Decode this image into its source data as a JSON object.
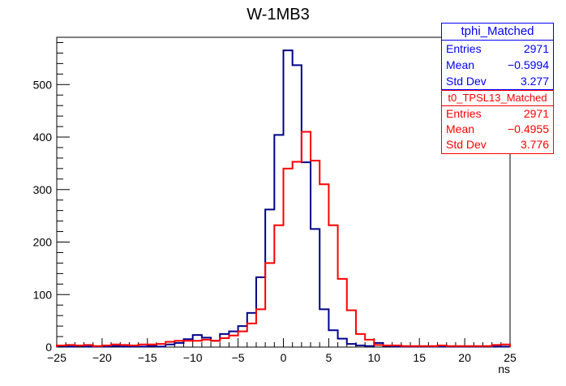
{
  "chart_data": {
    "type": "histogram",
    "title": "W-1MB3",
    "xlabel": "ns",
    "ylabel": "",
    "xlim": [
      -25,
      25
    ],
    "ylim": [
      0,
      590
    ],
    "bin_width": 1,
    "x_ticks": [
      "−25",
      "−20",
      "−15",
      "−10",
      "−5",
      "0",
      "5",
      "10",
      "15",
      "20",
      "25"
    ],
    "x_tick_values": [
      -25,
      -20,
      -15,
      -10,
      -5,
      0,
      5,
      10,
      15,
      20,
      25
    ],
    "y_ticks": [
      "0",
      "100",
      "200",
      "300",
      "400",
      "500"
    ],
    "y_tick_values": [
      0,
      100,
      200,
      300,
      400,
      500
    ],
    "series": [
      {
        "name": "tphi_Matched",
        "color": "#00008b",
        "bin_edges": [
          -25,
          -24,
          -23,
          -22,
          -21,
          -20,
          -19,
          -18,
          -17,
          -16,
          -15,
          -14,
          -13,
          -12,
          -11,
          -10,
          -9,
          -8,
          -7,
          -6,
          -5,
          -4,
          -3,
          -2,
          -1,
          0,
          1,
          2,
          3,
          4,
          5,
          6,
          7,
          8,
          9,
          10,
          11,
          12,
          13,
          14,
          15,
          16,
          17,
          18,
          19,
          20,
          21,
          22,
          23,
          24,
          25
        ],
        "values": [
          2,
          1,
          2,
          1,
          1,
          1,
          2,
          1,
          1,
          1,
          2,
          1,
          5,
          8,
          15,
          23,
          18,
          12,
          25,
          30,
          40,
          65,
          133,
          262,
          404,
          565,
          537,
          352,
          225,
          72,
          32,
          16,
          6,
          3,
          2,
          8,
          2,
          1,
          1,
          1,
          1,
          1,
          1,
          1,
          1,
          1,
          1,
          1,
          1,
          1
        ]
      },
      {
        "name": "t0_TPSL13_Matched",
        "color": "#ff0000",
        "bin_edges": [
          -25,
          -24,
          -23,
          -22,
          -21,
          -20,
          -19,
          -18,
          -17,
          -16,
          -15,
          -14,
          -13,
          -12,
          -11,
          -10,
          -9,
          -8,
          -7,
          -6,
          -5,
          -4,
          -3,
          -2,
          -1,
          0,
          1,
          2,
          3,
          4,
          5,
          6,
          7,
          8,
          9,
          10,
          11,
          12,
          13,
          14,
          15,
          16,
          17,
          18,
          19,
          20,
          21,
          22,
          23,
          24,
          25
        ],
        "values": [
          3,
          4,
          3,
          4,
          2,
          3,
          5,
          4,
          3,
          5,
          5,
          6,
          10,
          12,
          12,
          12,
          14,
          12,
          17,
          22,
          30,
          45,
          72,
          160,
          232,
          340,
          353,
          410,
          355,
          310,
          232,
          130,
          70,
          25,
          14,
          4,
          3,
          3,
          2,
          2,
          2,
          2,
          3,
          2,
          2,
          2,
          2,
          2,
          4,
          5
        ]
      }
    ]
  },
  "stats": {
    "blue": {
      "name": "tphi_Matched",
      "entries_label": "Entries",
      "entries": "2971",
      "mean_label": "Mean",
      "mean": "−0.5994",
      "stddev_label": "Std Dev",
      "stddev": "3.277",
      "color": "#0000ff"
    },
    "red": {
      "name": "t0_TPSL13_Matched",
      "entries_label": "Entries",
      "entries": "2971",
      "mean_label": "Mean",
      "mean": "−0.4955",
      "stddev_label": "Std Dev",
      "stddev": "3.776",
      "color": "#ff0000"
    }
  }
}
